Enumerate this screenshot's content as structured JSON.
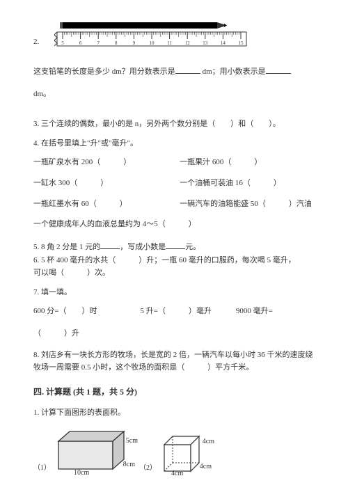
{
  "q2": {
    "number": "2.",
    "ruler": {
      "start": 5,
      "end": 15,
      "step": 1,
      "pencil_color": "#000000",
      "ruler_color": "#333333"
    },
    "text_a": "这支铅笔的长度是多少 dm？用分数表示是",
    "text_b": " dm；用小数表示是",
    "text_c": "dm。"
  },
  "q3": {
    "text_a": "3. 三个连续的偶数，最小的是 n，另外两个数分别是（",
    "text_b": "）和（",
    "text_c": "）。"
  },
  "q4": {
    "intro": "4. 在括号里填上\"升\"或\"毫升\"。",
    "rows": [
      {
        "l": "一瓶矿泉水有 200（　　　）",
        "r": "一瓶果汁 600（　　　）"
      },
      {
        "l": "一缸水 300（　　　）",
        "r": "一个油桶可装油 16（　　　）"
      },
      {
        "l": "一瓶红墨水有 60（　　　）",
        "r": "一辆汽车的油箱能盛 50（　　　）汽油"
      }
    ],
    "last": "一个健康成年人的血液总量约为 4～5（　　　）"
  },
  "q5": {
    "text_a": "5. 8 角 2 分是 1 元的",
    "text_b": "，写成小数是",
    "text_c": "元。"
  },
  "q6": {
    "text_a": "6. 5 杯 400 毫升的水共（　　　）升；一瓶 60 毫升的口服药，每次喝 5 毫升，",
    "text_b": "可以喝（　　　）次。"
  },
  "q7": {
    "intro": "7. 填一填。",
    "c1": "600 分=（　　）时",
    "c2": "5 升=（　　　）毫升",
    "c3": "9000 毫升=",
    "c3b": "（　　　）升"
  },
  "q8": {
    "text": "8. 刘店乡有一块长方形的牧场，长是宽的 2 倍，一辆汽车以每小时 36 千米的速度绕牧场一周需要 0.5 小时，这个牧场的面积是（　　　）平方千米。"
  },
  "section4": {
    "title": "四. 计算题 (共 1 题，共 5 分)",
    "q1": "1. 计算下面图形的表面积。",
    "fig1": {
      "label": "（1）",
      "l": "10cm",
      "w": "8cm",
      "h": "5cm",
      "stroke": "#333333",
      "fill": "#e8e8e8"
    },
    "fig2": {
      "label": "（2）",
      "a": "4cm",
      "b": "4cm",
      "c": "4cm",
      "stroke": "#333333",
      "fill": "#ffffff"
    }
  }
}
